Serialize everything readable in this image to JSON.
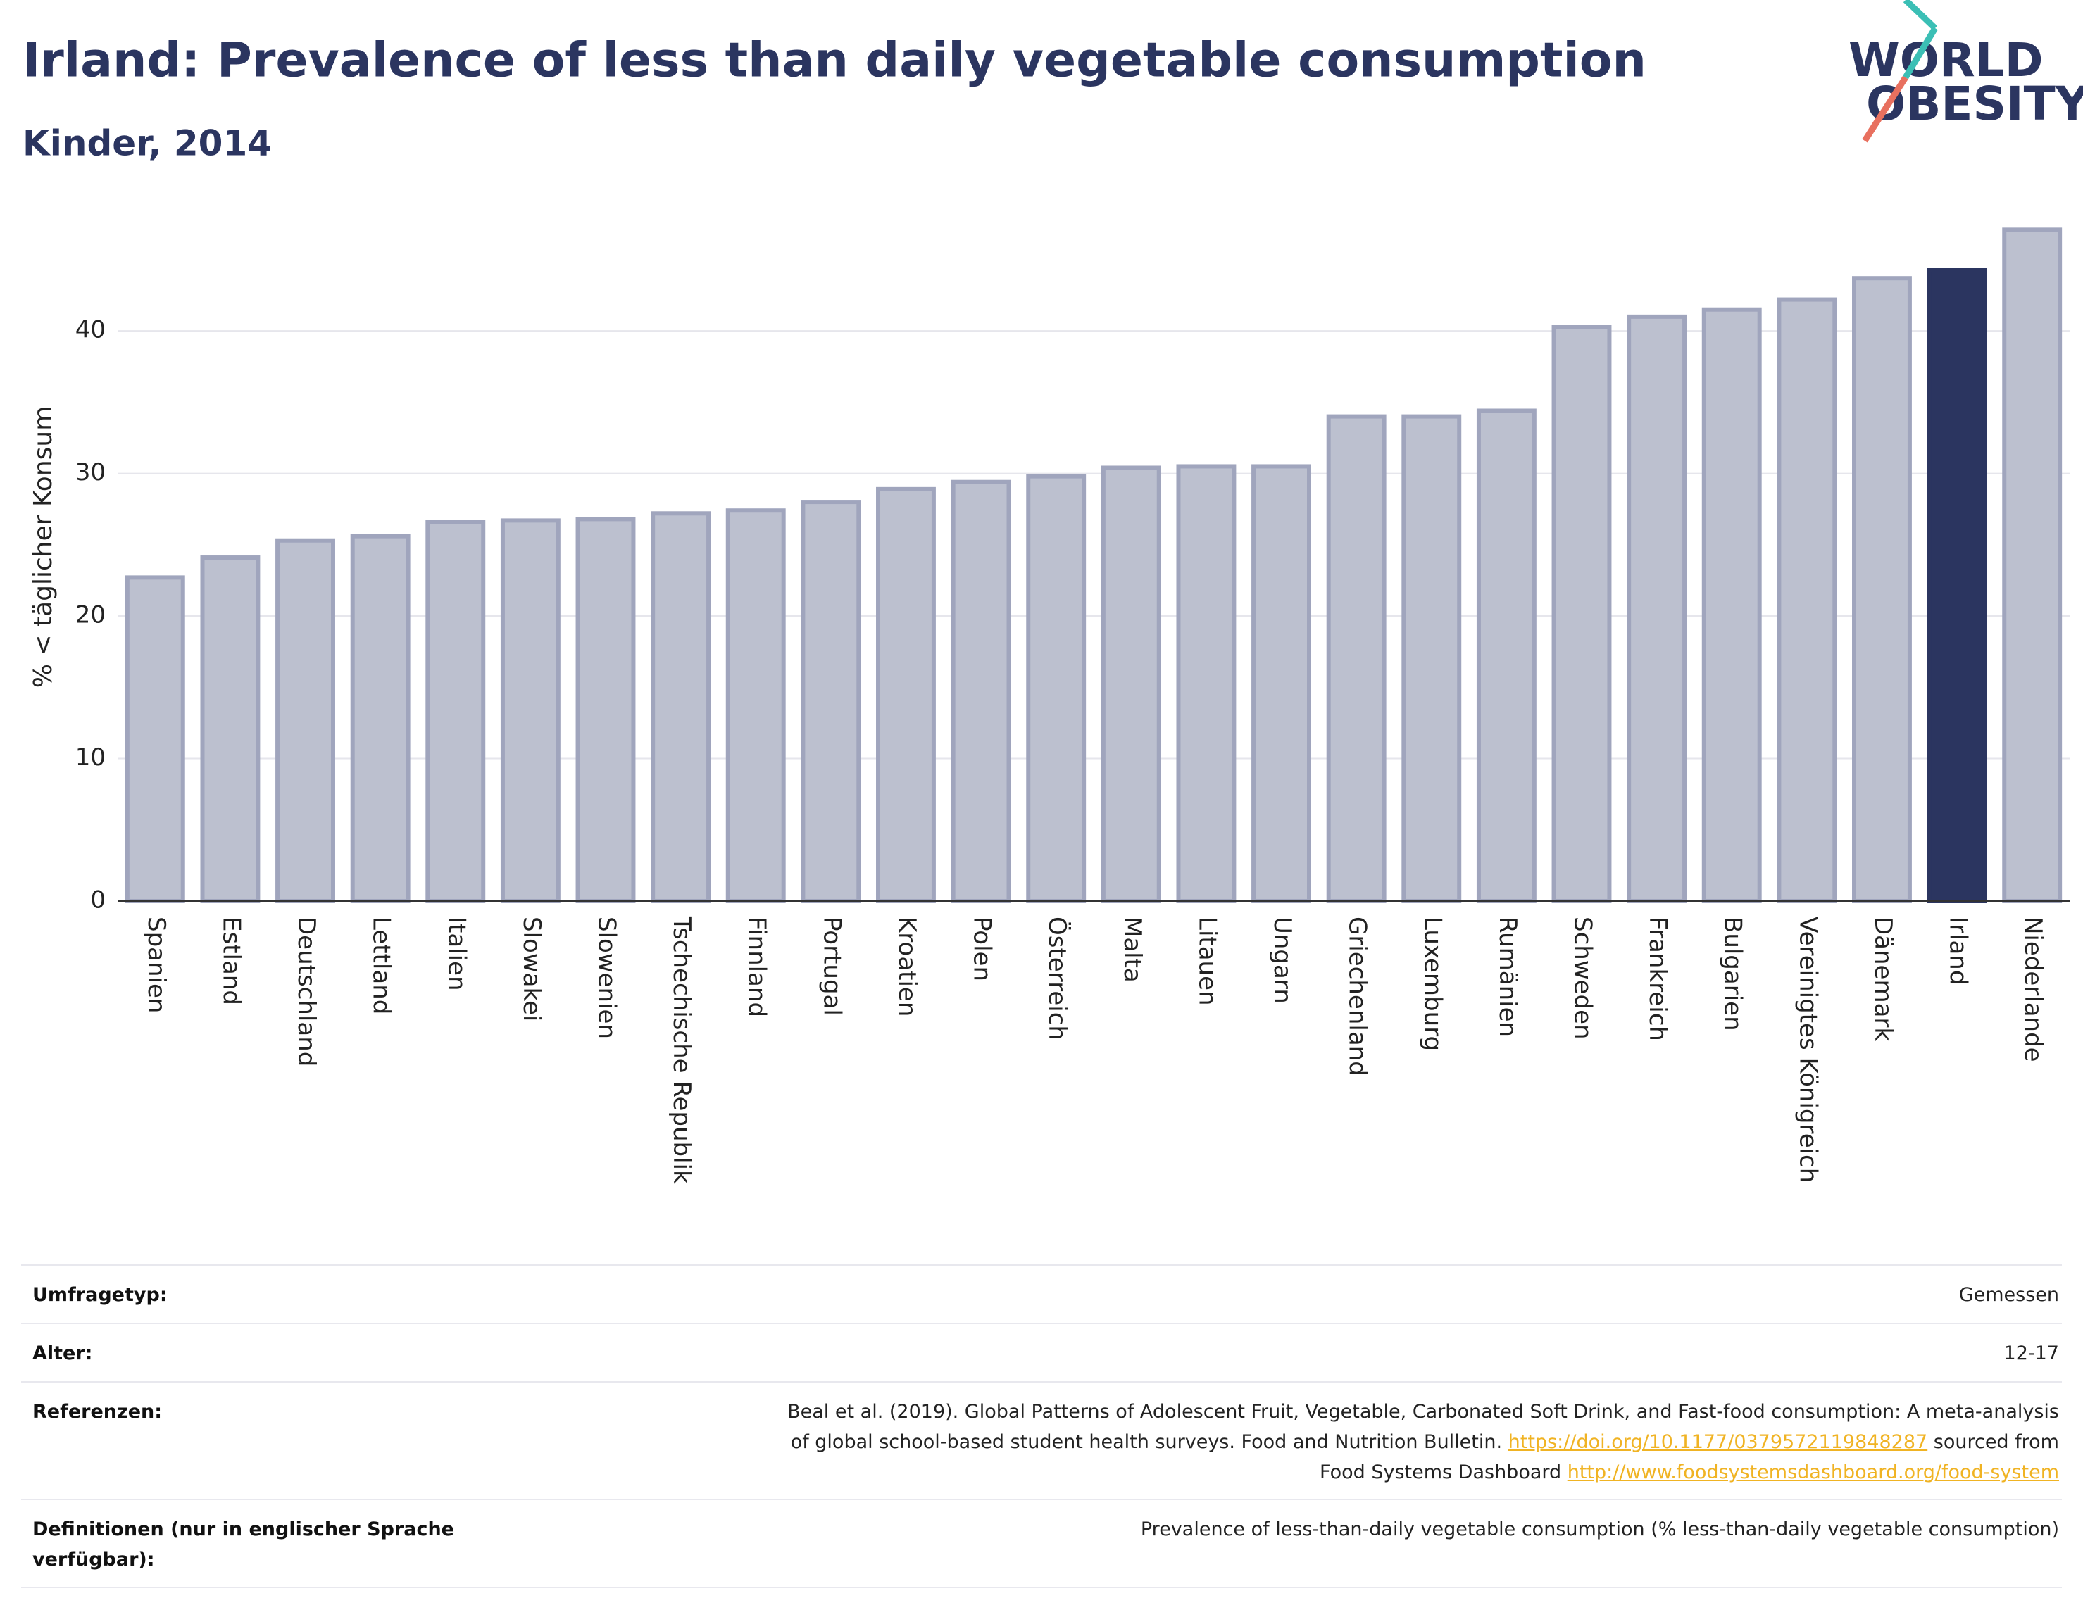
{
  "chart_data": {
    "type": "bar",
    "title": "Irland: Prevalence of less than daily vegetable consumption",
    "subtitle": "Kinder, 2014",
    "y_label": "% < täglicher Konsum",
    "categories": [
      "Spanien",
      "Estland",
      "Deutschland",
      "Lettland",
      "Italien",
      "Slowakei",
      "Slowenien",
      "Tschechische Republik",
      "Finnland",
      "Portugal",
      "Kroatien",
      "Polen",
      "Österreich",
      "Malta",
      "Litauen",
      "Ungarn",
      "Griechenland",
      "Luxemburg",
      "Rumänien",
      "Schweden",
      "Frankreich",
      "Bulgarien",
      "Vereinigtes Königreich",
      "Dänemark",
      "Irland",
      "Niederlande"
    ],
    "values": [
      22.7,
      24.1,
      25.3,
      25.6,
      26.6,
      26.7,
      26.8,
      27.2,
      27.4,
      28.0,
      28.9,
      29.4,
      29.8,
      30.4,
      30.5,
      30.5,
      34.0,
      34.0,
      34.4,
      40.3,
      41.0,
      41.5,
      42.2,
      43.7,
      44.3,
      47.1
    ],
    "colors": [
      "#bcc0cf",
      "#bcc0cf",
      "#bcc0cf",
      "#bcc0cf",
      "#bcc0cf",
      "#bcc0cf",
      "#bcc0cf",
      "#bcc0cf",
      "#bcc0cf",
      "#bcc0cf",
      "#bcc0cf",
      "#bcc0cf",
      "#bcc0cf",
      "#bcc0cf",
      "#bcc0cf",
      "#bcc0cf",
      "#bcc0cf",
      "#bcc0cf",
      "#bcc0cf",
      "#bcc0cf",
      "#bcc0cf",
      "#bcc0cf",
      "#bcc0cf",
      "#bcc0cf",
      "#2b3560",
      "#bcc0cf"
    ],
    "ylim": [
      0,
      48.5
    ],
    "yticks": [
      0,
      10,
      20,
      30,
      40
    ],
    "grid": true
  },
  "logo": {
    "line1": "WORLD",
    "line2": "OBESITY"
  },
  "table": {
    "rows": [
      {
        "label": "Umfragetyp:",
        "value": [
          [
            {
              "text": "Gemessen"
            }
          ]
        ]
      },
      {
        "label": "Alter:",
        "value": [
          [
            {
              "text": "12-17"
            }
          ]
        ]
      },
      {
        "label": "Referenzen:",
        "value": [
          [
            {
              "text": "Beal et al. (2019). Global Patterns of Adolescent Fruit, Vegetable, Carbonated Soft Drink, and Fast-food consumption: A meta-analysis"
            }
          ],
          [
            {
              "text": "of global school-based student health surveys. Food and Nutrition Bulletin. "
            },
            {
              "text": "https://doi.org/10.1177/0379572119848287",
              "style": "link"
            },
            {
              "text": " sourced from"
            }
          ],
          [
            {
              "text": "Food Systems Dashboard "
            },
            {
              "text": "http://www.foodsystemsdashboard.org/food-system",
              "style": "link"
            }
          ]
        ]
      },
      {
        "label": "Definitionen (nur in englischer Sprache verfügbar):",
        "value": [
          [
            {
              "text": "Prevalence of less-than-daily vegetable consumption (% less-than-daily vegetable consumption)"
            }
          ]
        ]
      }
    ]
  }
}
